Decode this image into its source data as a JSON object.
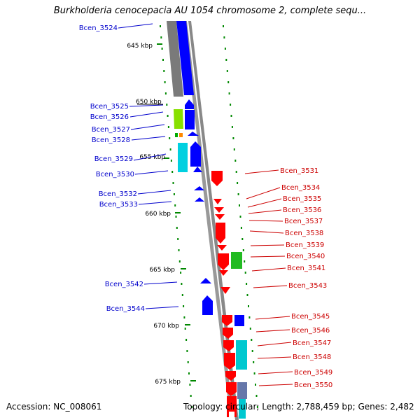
{
  "title": "Burkholderia cenocepacia AU 1054 chromosome 2, complete sequ...",
  "footer": {
    "accession": "Accession: NC_008061",
    "topology": "Topology: circular; Length: 2,788,459 bp; Genes: 2,482"
  },
  "colors": {
    "blue_label": "#0000cc",
    "red_label": "#cc0000",
    "forward_gene": "#0000ff",
    "reverse_gene": "#ff0000",
    "backbone": "#888888",
    "tick": "#008800"
  },
  "scale_labels": [
    {
      "kbp": 645,
      "text": "645 kbp"
    },
    {
      "kbp": 650,
      "text": "650 kbp"
    },
    {
      "kbp": 655,
      "text": "655 kbp"
    },
    {
      "kbp": 660,
      "text": "660 kbp"
    },
    {
      "kbp": 665,
      "text": "665 kbp"
    },
    {
      "kbp": 670,
      "text": "670 kbp"
    },
    {
      "kbp": 675,
      "text": "675 kbp"
    }
  ],
  "left_genes": [
    "Bcen_3524",
    "Bcen_3525",
    "Bcen_3526",
    "Bcen_3527",
    "Bcen_3528",
    "Bcen_3529",
    "Bcen_3530",
    "Bcen_3532",
    "Bcen_3533",
    "Bcen_3542",
    "Bcen_3544"
  ],
  "right_genes": [
    "Bcen_3531",
    "Bcen_3534",
    "Bcen_3535",
    "Bcen_3536",
    "Bcen_3537",
    "Bcen_3538",
    "Bcen_3539",
    "Bcen_3540",
    "Bcen_3541",
    "Bcen_3543",
    "Bcen_3545",
    "Bcen_3546",
    "Bcen_3547",
    "Bcen_3548",
    "Bcen_3549",
    "Bcen_3550"
  ]
}
